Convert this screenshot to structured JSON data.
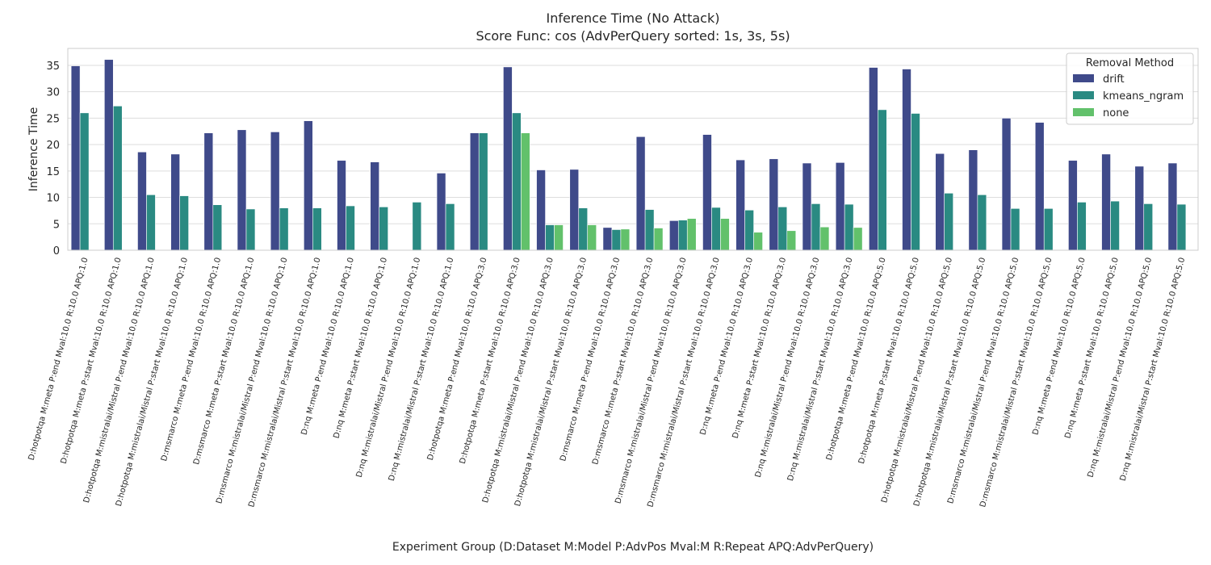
{
  "chart_data": {
    "type": "bar",
    "title": "Inference Time (No Attack)",
    "subtitle": "Score Func: cos (AdvPerQuery sorted: 1s, 3s, 5s)",
    "xlabel": "Experiment Group (D:Dataset M:Model P:AdvPos Mval:M R:Repeat APQ:AdvPerQuery)",
    "ylabel": "Inference Time",
    "ylim": [
      0,
      38.2
    ],
    "yticks": [
      0,
      5,
      10,
      15,
      20,
      25,
      30,
      35
    ],
    "grid": true,
    "legend": {
      "title": "Removal Method",
      "placement": "top-right"
    },
    "categories": [
      "D:hotpotqa M:meta P:end Mval:10.0 R:10.0 APQ:1.0",
      "D:hotpotqa M:meta P:start Mval:10.0 R:10.0 APQ:1.0",
      "D:hotpotqa M:mistralai/Mistral P:end Mval:10.0 R:10.0 APQ:1.0",
      "D:hotpotqa M:mistralai/Mistral P:start Mval:10.0 R:10.0 APQ:1.0",
      "D:msmarco M:meta P:end Mval:10.0 R:10.0 APQ:1.0",
      "D:msmarco M:meta P:start Mval:10.0 R:10.0 APQ:1.0",
      "D:msmarco M:mistralai/Mistral P:end Mval:10.0 R:10.0 APQ:1.0",
      "D:msmarco M:mistralai/Mistral P:start Mval:10.0 R:10.0 APQ:1.0",
      "D:nq M:meta P:end Mval:10.0 R:10.0 APQ:1.0",
      "D:nq M:meta P:start Mval:10.0 R:10.0 APQ:1.0",
      "D:nq M:mistralai/Mistral P:end Mval:10.0 R:10.0 APQ:1.0",
      "D:nq M:mistralai/Mistral P:start Mval:10.0 R:10.0 APQ:1.0",
      "D:hotpotqa M:meta P:end Mval:10.0 R:10.0 APQ:3.0",
      "D:hotpotqa M:meta P:start Mval:10.0 R:10.0 APQ:3.0",
      "D:hotpotqa M:mistralai/Mistral P:end Mval:10.0 R:10.0 APQ:3.0",
      "D:hotpotqa M:mistralai/Mistral P:start Mval:10.0 R:10.0 APQ:3.0",
      "D:msmarco M:meta P:end Mval:10.0 R:10.0 APQ:3.0",
      "D:msmarco M:meta P:start Mval:10.0 R:10.0 APQ:3.0",
      "D:msmarco M:mistralai/Mistral P:end Mval:10.0 R:10.0 APQ:3.0",
      "D:msmarco M:mistralai/Mistral P:start Mval:10.0 R:10.0 APQ:3.0",
      "D:nq M:meta P:end Mval:10.0 R:10.0 APQ:3.0",
      "D:nq M:meta P:start Mval:10.0 R:10.0 APQ:3.0",
      "D:nq M:mistralai/Mistral P:end Mval:10.0 R:10.0 APQ:3.0",
      "D:nq M:mistralai/Mistral P:start Mval:10.0 R:10.0 APQ:3.0",
      "D:hotpotqa M:meta P:end Mval:10.0 R:10.0 APQ:5.0",
      "D:hotpotqa M:meta P:start Mval:10.0 R:10.0 APQ:5.0",
      "D:hotpotqa M:mistralai/Mistral P:end Mval:10.0 R:10.0 APQ:5.0",
      "D:hotpotqa M:mistralai/Mistral P:start Mval:10.0 R:10.0 APQ:5.0",
      "D:msmarco M:mistralai/Mistral P:end Mval:10.0 R:10.0 APQ:5.0",
      "D:msmarco M:mistralai/Mistral P:start Mval:10.0 R:10.0 APQ:5.0",
      "D:nq M:meta P:end Mval:10.0 R:10.0 APQ:5.0",
      "D:nq M:meta P:start Mval:10.0 R:10.0 APQ:5.0",
      "D:nq M:mistralai/Mistral P:end Mval:10.0 R:10.0 APQ:5.0",
      "D:nq M:mistralai/Mistral P:start Mval:10.0 R:10.0 APQ:5.0"
    ],
    "series": [
      {
        "name": "drift",
        "color": "#3f4a8a",
        "values": [
          34.9,
          36.1,
          18.6,
          18.2,
          22.2,
          22.8,
          22.4,
          24.5,
          17.0,
          16.7,
          null,
          14.6,
          22.2,
          34.7,
          15.2,
          15.3,
          4.3,
          21.5,
          5.6,
          21.9,
          17.1,
          17.3,
          16.5,
          16.6,
          34.6,
          34.3,
          18.3,
          19.0,
          25.0,
          24.2,
          17.0,
          18.2,
          15.9,
          16.5
        ]
      },
      {
        "name": "kmeans_ngram",
        "color": "#2a8a82",
        "values": [
          26.0,
          27.3,
          10.5,
          10.3,
          8.6,
          7.8,
          8.0,
          8.0,
          8.4,
          8.2,
          9.1,
          8.8,
          22.2,
          26.0,
          4.8,
          8.0,
          3.9,
          7.7,
          5.7,
          8.1,
          7.6,
          8.2,
          8.8,
          8.7,
          26.6,
          25.9,
          10.8,
          10.5,
          7.9,
          7.9,
          9.1,
          9.3,
          8.8,
          8.7
        ]
      },
      {
        "name": "none",
        "color": "#62c16b",
        "values": [
          null,
          null,
          null,
          null,
          null,
          null,
          null,
          null,
          null,
          null,
          null,
          null,
          null,
          22.2,
          4.8,
          4.8,
          4.0,
          4.2,
          6.0,
          6.0,
          3.4,
          3.7,
          4.4,
          4.3,
          null,
          null,
          null,
          null,
          null,
          null,
          null,
          null,
          null,
          null
        ]
      }
    ]
  }
}
